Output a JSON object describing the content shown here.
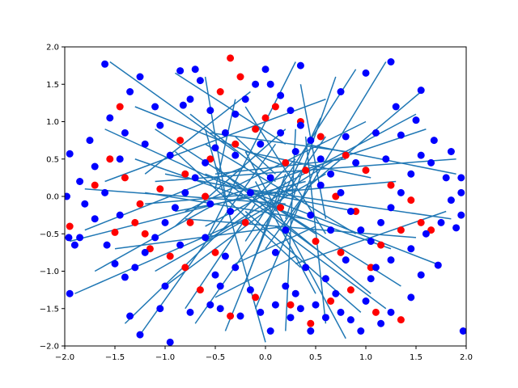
{
  "chart_data": {
    "type": "scatter",
    "title": "",
    "xlabel": "",
    "ylabel": "",
    "xlim": [
      -2.0,
      2.0
    ],
    "ylim": [
      -2.0,
      2.0
    ],
    "grid": false,
    "x_ticks": [
      -2.0,
      -1.5,
      -1.0,
      -0.5,
      0.0,
      0.5,
      1.0,
      1.5,
      2.0
    ],
    "y_ticks": [
      -2.0,
      -1.5,
      -1.0,
      -0.5,
      0.0,
      0.5,
      1.0,
      1.5,
      2.0
    ],
    "x_tick_labels": [
      "−2.0",
      "−1.5",
      "−1.0",
      "−0.5",
      "0.0",
      "0.5",
      "1.0",
      "1.5",
      "2.0"
    ],
    "y_tick_labels": [
      "−2.0",
      "−1.5",
      "−1.0",
      "−0.5",
      "0.0",
      "0.5",
      "1.0",
      "1.5",
      "2.0"
    ],
    "colors": {
      "segment": "#1f77b4",
      "blue": "#0000ff",
      "red": "#ff0000"
    },
    "segments": [
      [
        [
          -0.15,
          1.4
        ],
        [
          -1.2,
          0.3
        ]
      ],
      [
        [
          0.3,
          1.8
        ],
        [
          -0.6,
          -0.6
        ]
      ],
      [
        [
          0.6,
          1.3
        ],
        [
          -1.6,
          0.2
        ]
      ],
      [
        [
          1.0,
          1.0
        ],
        [
          -0.8,
          -0.2
        ]
      ],
      [
        [
          1.2,
          1.8
        ],
        [
          0.2,
          -0.4
        ]
      ],
      [
        [
          1.55,
          1.4
        ],
        [
          0.4,
          0.1
        ]
      ],
      [
        [
          1.9,
          0.5
        ],
        [
          -1.1,
          0.2
        ]
      ],
      [
        [
          1.8,
          -0.2
        ],
        [
          0.3,
          -0.9
        ]
      ],
      [
        [
          1.7,
          -0.9
        ],
        [
          -0.6,
          0.3
        ]
      ],
      [
        [
          1.35,
          -1.2
        ],
        [
          -0.3,
          0.2
        ]
      ],
      [
        [
          1.2,
          -1.5
        ],
        [
          0.1,
          -0.4
        ]
      ],
      [
        [
          0.8,
          -1.9
        ],
        [
          -0.2,
          0.6
        ]
      ],
      [
        [
          0.5,
          -1.3
        ],
        [
          -0.1,
          0.2
        ]
      ],
      [
        [
          0.2,
          -1.8
        ],
        [
          0.3,
          0.9
        ]
      ],
      [
        [
          -0.1,
          -1.5
        ],
        [
          0.5,
          0.4
        ]
      ],
      [
        [
          -0.4,
          -1.8
        ],
        [
          0.2,
          0.2
        ]
      ],
      [
        [
          -0.7,
          -1.7
        ],
        [
          0.6,
          0.8
        ]
      ],
      [
        [
          -1.0,
          -1.2
        ],
        [
          0.1,
          -0.1
        ]
      ],
      [
        [
          -1.4,
          -1.7
        ],
        [
          0.3,
          0.5
        ]
      ],
      [
        [
          -1.7,
          -1.0
        ],
        [
          -0.5,
          -0.1
        ]
      ],
      [
        [
          -1.9,
          -1.3
        ],
        [
          -0.2,
          -0.3
        ]
      ],
      [
        [
          -1.95,
          -0.6
        ],
        [
          0.4,
          0.2
        ]
      ],
      [
        [
          -1.8,
          0.1
        ],
        [
          0.2,
          -0.1
        ]
      ],
      [
        [
          -1.6,
          0.9
        ],
        [
          -0.3,
          0.1
        ]
      ],
      [
        [
          -1.3,
          1.2
        ],
        [
          0.2,
          0.4
        ]
      ],
      [
        [
          -0.9,
          1.65
        ],
        [
          0.2,
          0.7
        ]
      ],
      [
        [
          -0.6,
          1.6
        ],
        [
          -0.4,
          0.0
        ]
      ],
      [
        [
          -1.55,
          1.8
        ],
        [
          -0.3,
          0.6
        ]
      ],
      [
        [
          -0.2,
          1.2
        ],
        [
          0.6,
          -0.5
        ]
      ],
      [
        [
          0.7,
          1.6
        ],
        [
          0.2,
          -0.3
        ]
      ],
      [
        [
          1.5,
          1.1
        ],
        [
          -0.6,
          -0.4
        ]
      ],
      [
        [
          1.9,
          0.3
        ],
        [
          0.4,
          0.7
        ]
      ],
      [
        [
          1.85,
          -0.3
        ],
        [
          -0.2,
          0.1
        ]
      ],
      [
        [
          1.5,
          -0.55
        ],
        [
          -0.8,
          -0.3
        ]
      ],
      [
        [
          1.05,
          -1.3
        ],
        [
          -0.5,
          0.4
        ]
      ],
      [
        [
          0.6,
          -1.7
        ],
        [
          0.4,
          0.8
        ]
      ],
      [
        [
          0.0,
          -1.95
        ],
        [
          -0.6,
          0.9
        ]
      ],
      [
        [
          -0.5,
          -1.35
        ],
        [
          0.3,
          -0.8
        ]
      ],
      [
        [
          -1.1,
          -1.0
        ],
        [
          0.6,
          0.3
        ]
      ],
      [
        [
          -1.5,
          -0.7
        ],
        [
          0.2,
          -0.4
        ]
      ],
      [
        [
          -1.8,
          -0.45
        ],
        [
          -0.2,
          0.4
        ]
      ],
      [
        [
          -1.1,
          0.9
        ],
        [
          0.5,
          -0.5
        ]
      ],
      [
        [
          -0.3,
          1.3
        ],
        [
          -0.5,
          0.1
        ]
      ],
      [
        [
          0.35,
          1.5
        ],
        [
          0.6,
          -0.3
        ]
      ],
      [
        [
          0.9,
          1.7
        ],
        [
          -0.2,
          -0.6
        ]
      ],
      [
        [
          1.3,
          0.2
        ],
        [
          -1.2,
          -0.1
        ]
      ],
      [
        [
          1.25,
          -0.7
        ],
        [
          -1.3,
          0.5
        ]
      ],
      [
        [
          0.95,
          -1.55
        ],
        [
          -0.2,
          -0.2
        ]
      ],
      [
        [
          0.35,
          -0.95
        ],
        [
          -0.9,
          0.6
        ]
      ],
      [
        [
          -0.2,
          -1.15
        ],
        [
          0.2,
          0.3
        ]
      ],
      [
        [
          -0.8,
          -1.5
        ],
        [
          -0.1,
          -0.1
        ]
      ],
      [
        [
          -1.25,
          -1.85
        ],
        [
          0.1,
          0.7
        ]
      ],
      [
        [
          -1.0,
          0.3
        ],
        [
          0.9,
          -0.2
        ]
      ],
      [
        [
          -0.55,
          0.85
        ],
        [
          0.8,
          0.6
        ]
      ],
      [
        [
          0.2,
          0.9
        ],
        [
          -0.9,
          -0.4
        ]
      ],
      [
        [
          0.8,
          0.5
        ],
        [
          -0.5,
          0.3
        ]
      ],
      [
        [
          1.6,
          0.9
        ],
        [
          -0.4,
          0.0
        ]
      ],
      [
        [
          0.9,
          -0.5
        ],
        [
          -0.6,
          0.7
        ]
      ],
      [
        [
          0.5,
          -0.4
        ],
        [
          -0.3,
          -0.9
        ]
      ],
      [
        [
          -0.6,
          -0.6
        ],
        [
          0.7,
          0.5
        ]
      ],
      [
        [
          -0.9,
          -0.2
        ],
        [
          0.3,
          0.1
        ]
      ],
      [
        [
          -0.4,
          0.2
        ],
        [
          0.6,
          -0.8
        ]
      ],
      [
        [
          0.1,
          0.3
        ],
        [
          -0.3,
          0.8
        ]
      ],
      [
        [
          0.4,
          0.05
        ],
        [
          0.0,
          -0.7
        ]
      ],
      [
        [
          -1.2,
          0.05
        ],
        [
          0.4,
          -0.3
        ]
      ],
      [
        [
          1.05,
          0.25
        ],
        [
          -0.2,
          0.6
        ]
      ],
      [
        [
          0.55,
          1.05
        ],
        [
          0.1,
          -0.2
        ]
      ],
      [
        [
          -0.75,
          1.1
        ],
        [
          0.1,
          0.2
        ]
      ]
    ],
    "blue_points": [
      [
        -1.6,
        1.77
      ],
      [
        -1.35,
        1.4
      ],
      [
        -1.55,
        1.05
      ],
      [
        -1.75,
        0.75
      ],
      [
        -1.95,
        0.57
      ],
      [
        -1.7,
        0.4
      ],
      [
        -1.85,
        0.2
      ],
      [
        -1.98,
        0.0
      ],
      [
        -1.8,
        -0.1
      ],
      [
        -1.96,
        -0.55
      ],
      [
        -1.9,
        -0.65
      ],
      [
        -1.58,
        -0.65
      ],
      [
        -1.5,
        -0.9
      ],
      [
        -1.4,
        -1.08
      ],
      [
        -1.95,
        -1.3
      ],
      [
        -1.35,
        -1.6
      ],
      [
        -1.25,
        -1.85
      ],
      [
        -1.0,
        -1.2
      ],
      [
        -1.05,
        -1.5
      ],
      [
        -0.95,
        -1.95
      ],
      [
        -0.75,
        -1.55
      ],
      [
        -0.55,
        -1.45
      ],
      [
        -0.45,
        -1.5
      ],
      [
        -0.5,
        -1.05
      ],
      [
        -0.3,
        -0.95
      ],
      [
        -0.15,
        -1.25
      ],
      [
        -0.05,
        -1.55
      ],
      [
        0.05,
        -1.8
      ],
      [
        0.1,
        -1.45
      ],
      [
        0.2,
        -1.2
      ],
      [
        0.3,
        -1.3
      ],
      [
        0.4,
        -0.95
      ],
      [
        0.5,
        -1.45
      ],
      [
        0.6,
        -1.1
      ],
      [
        0.7,
        -1.3
      ],
      [
        0.75,
        -1.55
      ],
      [
        0.8,
        -0.85
      ],
      [
        0.85,
        -1.65
      ],
      [
        0.95,
        -1.8
      ],
      [
        1.0,
        -1.4
      ],
      [
        1.05,
        -1.1
      ],
      [
        1.1,
        -0.95
      ],
      [
        1.15,
        -1.7
      ],
      [
        1.25,
        -1.55
      ],
      [
        1.45,
        -1.35
      ],
      [
        1.55,
        -1.05
      ],
      [
        1.72,
        -0.92
      ],
      [
        1.97,
        -1.8
      ],
      [
        1.9,
        -0.42
      ],
      [
        1.75,
        -0.35
      ],
      [
        1.95,
        -0.25
      ],
      [
        1.85,
        -0.05
      ],
      [
        1.95,
        0.05
      ],
      [
        1.8,
        0.25
      ],
      [
        1.65,
        0.45
      ],
      [
        1.55,
        0.55
      ],
      [
        1.45,
        0.3
      ],
      [
        1.35,
        0.05
      ],
      [
        1.25,
        -0.15
      ],
      [
        1.15,
        -0.35
      ],
      [
        1.05,
        -0.6
      ],
      [
        0.95,
        -0.45
      ],
      [
        0.85,
        -0.2
      ],
      [
        0.75,
        0.05
      ],
      [
        0.65,
        0.3
      ],
      [
        0.55,
        0.5
      ],
      [
        0.45,
        0.75
      ],
      [
        0.35,
        0.95
      ],
      [
        0.25,
        1.15
      ],
      [
        0.15,
        1.35
      ],
      [
        0.05,
        1.5
      ],
      [
        0.0,
        1.7
      ],
      [
        -0.1,
        1.5
      ],
      [
        -0.2,
        1.3
      ],
      [
        -0.3,
        1.1
      ],
      [
        -0.4,
        0.85
      ],
      [
        -0.5,
        0.65
      ],
      [
        -0.6,
        0.45
      ],
      [
        -0.7,
        0.25
      ],
      [
        -0.8,
        0.05
      ],
      [
        -0.9,
        -0.15
      ],
      [
        -1.0,
        -0.35
      ],
      [
        -1.1,
        -0.55
      ],
      [
        -1.2,
        -0.75
      ],
      [
        -1.3,
        -0.95
      ],
      [
        -0.85,
        1.68
      ],
      [
        -0.7,
        1.7
      ],
      [
        -0.65,
        1.55
      ],
      [
        -1.25,
        1.6
      ],
      [
        -0.82,
        1.22
      ],
      [
        -0.75,
        1.3
      ],
      [
        -0.55,
        1.15
      ],
      [
        1.25,
        1.8
      ],
      [
        1.0,
        1.65
      ],
      [
        0.75,
        1.4
      ],
      [
        1.55,
        1.42
      ],
      [
        1.3,
        1.2
      ],
      [
        1.1,
        0.85
      ],
      [
        1.35,
        0.82
      ],
      [
        1.5,
        1.02
      ],
      [
        0.35,
        1.75
      ],
      [
        -1.1,
        1.2
      ],
      [
        -1.4,
        0.85
      ],
      [
        -1.2,
        0.7
      ],
      [
        -1.45,
        0.5
      ],
      [
        -1.6,
        0.05
      ],
      [
        -1.45,
        -0.25
      ],
      [
        -1.7,
        -0.3
      ],
      [
        -1.85,
        -0.55
      ],
      [
        -0.45,
        -1.2
      ],
      [
        -0.25,
        -1.6
      ],
      [
        0.25,
        -1.62
      ],
      [
        0.6,
        -1.62
      ],
      [
        0.45,
        -1.8
      ],
      [
        0.35,
        -1.5
      ],
      [
        1.25,
        -0.85
      ],
      [
        1.45,
        -0.7
      ],
      [
        1.6,
        -0.5
      ],
      [
        1.95,
        0.25
      ],
      [
        1.85,
        0.6
      ],
      [
        1.68,
        0.75
      ],
      [
        0.15,
        0.85
      ],
      [
        0.3,
        0.6
      ],
      [
        0.05,
        0.25
      ],
      [
        -0.15,
        0.05
      ],
      [
        -0.35,
        -0.2
      ],
      [
        0.2,
        -0.45
      ],
      [
        0.45,
        -0.25
      ],
      [
        -0.6,
        -0.55
      ],
      [
        -0.85,
        -0.65
      ],
      [
        0.65,
        -0.45
      ],
      [
        0.9,
        0.45
      ],
      [
        -0.95,
        0.55
      ],
      [
        -0.3,
        0.55
      ],
      [
        0.55,
        0.15
      ],
      [
        -0.55,
        -0.1
      ],
      [
        0.1,
        -0.75
      ],
      [
        -0.05,
        0.7
      ],
      [
        0.8,
        0.8
      ],
      [
        -1.05,
        0.95
      ],
      [
        1.2,
        0.5
      ],
      [
        -0.4,
        -0.8
      ]
    ],
    "red_points": [
      [
        -1.45,
        1.2
      ],
      [
        -1.55,
        0.5
      ],
      [
        -1.7,
        0.15
      ],
      [
        -1.95,
        -0.4
      ],
      [
        -1.5,
        -0.48
      ],
      [
        -1.3,
        -0.35
      ],
      [
        -1.2,
        -0.5
      ],
      [
        -1.15,
        -0.7
      ],
      [
        -0.95,
        -0.8
      ],
      [
        -0.8,
        -0.95
      ],
      [
        -0.65,
        -1.25
      ],
      [
        -0.35,
        -1.6
      ],
      [
        -0.1,
        -1.35
      ],
      [
        0.25,
        -1.45
      ],
      [
        0.45,
        -1.7
      ],
      [
        0.65,
        -1.4
      ],
      [
        0.85,
        -1.25
      ],
      [
        1.1,
        -1.55
      ],
      [
        1.35,
        -1.65
      ],
      [
        1.15,
        -0.65
      ],
      [
        1.35,
        -0.45
      ],
      [
        1.55,
        -0.35
      ],
      [
        1.65,
        -0.45
      ],
      [
        1.45,
        -0.05
      ],
      [
        1.25,
        0.15
      ],
      [
        1.0,
        0.35
      ],
      [
        0.8,
        0.55
      ],
      [
        0.55,
        0.8
      ],
      [
        0.35,
        1.0
      ],
      [
        0.1,
        1.2
      ],
      [
        -0.1,
        0.9
      ],
      [
        -0.3,
        0.7
      ],
      [
        -0.55,
        0.5
      ],
      [
        -0.8,
        0.3
      ],
      [
        -1.05,
        0.1
      ],
      [
        -1.25,
        -0.1
      ],
      [
        -0.35,
        1.85
      ],
      [
        -0.25,
        1.6
      ],
      [
        -0.45,
        1.4
      ],
      [
        0.0,
        1.05
      ],
      [
        0.4,
        0.35
      ],
      [
        0.7,
        0.0
      ],
      [
        0.9,
        -0.2
      ],
      [
        -0.6,
        0.0
      ],
      [
        -0.2,
        -0.35
      ],
      [
        0.15,
        -0.15
      ],
      [
        0.5,
        -0.6
      ],
      [
        -0.75,
        -0.35
      ],
      [
        -1.4,
        0.25
      ],
      [
        1.05,
        -0.95
      ],
      [
        0.75,
        -0.75
      ],
      [
        -0.5,
        -0.75
      ],
      [
        0.2,
        0.45
      ],
      [
        -0.85,
        0.75
      ]
    ]
  }
}
